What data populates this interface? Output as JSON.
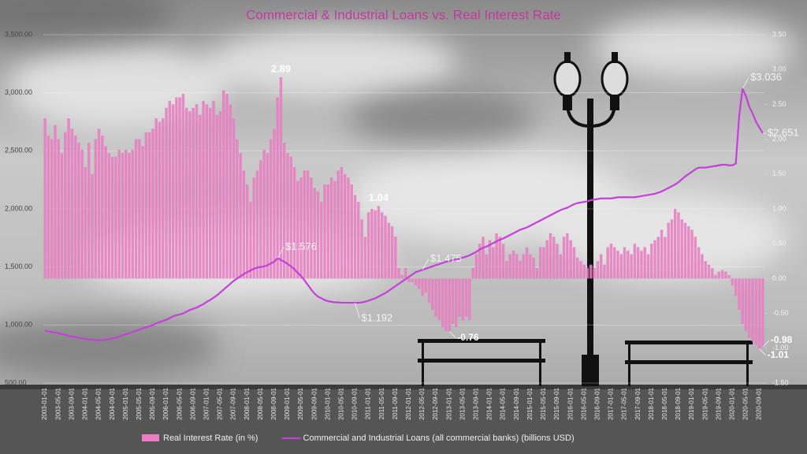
{
  "chart_data": {
    "type": "combo",
    "title": "Commercial & Industrial Loans vs. Real Interest Rate",
    "categories": [
      "2003-01-01",
      null,
      null,
      null,
      "2003-05-01",
      null,
      null,
      null,
      "2003-09-01",
      null,
      null,
      null,
      "2004-01-01",
      null,
      null,
      null,
      "2004-05-01",
      null,
      null,
      null,
      "2004-09-01",
      null,
      null,
      null,
      "2005-01-01",
      null,
      null,
      null,
      "2005-05-01",
      null,
      null,
      null,
      "2005-09-01",
      null,
      null,
      null,
      "2006-01-01",
      null,
      null,
      null,
      "2006-05-01",
      null,
      null,
      null,
      "2006-09-01",
      null,
      null,
      null,
      "2007-01-01",
      null,
      null,
      null,
      "2007-05-01",
      null,
      null,
      null,
      "2007-09-01",
      null,
      null,
      null,
      "2008-01-01",
      null,
      null,
      null,
      "2008-05-01",
      null,
      null,
      null,
      "2008-09-01",
      null,
      null,
      null,
      "2009-01-01",
      null,
      null,
      null,
      "2009-05-01",
      null,
      null,
      null,
      "2009-09-01",
      null,
      null,
      null,
      "2010-01-01",
      null,
      null,
      null,
      "2010-05-01",
      null,
      null,
      null,
      "2010-09-01",
      null,
      null,
      null,
      "2011-01-01",
      null,
      null,
      null,
      "2011-05-01",
      null,
      null,
      null,
      "2011-09-01",
      null,
      null,
      null,
      "2012-01-01",
      null,
      null,
      null,
      "2012-05-01",
      null,
      null,
      null,
      "2012-09-01",
      null,
      null,
      null,
      "2013-01-01",
      null,
      null,
      null,
      "2013-05-01",
      null,
      null,
      null,
      "2013-09-01",
      null,
      null,
      null,
      "2014-01-01",
      null,
      null,
      null,
      "2014-05-01",
      null,
      null,
      null,
      "2014-09-01",
      null,
      null,
      null,
      "2015-01-01",
      null,
      null,
      null,
      "2015-05-01",
      null,
      null,
      null,
      "2015-09-01",
      null,
      null,
      null,
      "2016-01-01",
      null,
      null,
      null,
      "2016-05-01",
      null,
      null,
      null,
      "2016-09-01",
      null,
      null,
      null,
      "2017-01-01",
      null,
      null,
      null,
      "2017-05-01",
      null,
      null,
      null,
      "2017-09-01",
      null,
      null,
      null,
      "2018-01-01",
      null,
      null,
      null,
      "2018-05-01",
      null,
      null,
      null,
      "2018-09-01",
      null,
      null,
      null,
      "2019-01-01",
      null,
      null,
      null,
      "2019-05-01",
      null,
      null,
      null,
      "2019-09-01",
      null,
      null,
      null,
      "2020-01-01",
      null,
      null,
      null,
      "2020-05-01",
      null,
      null,
      null,
      "2020-09-01",
      null
    ],
    "series": [
      {
        "name": "Real Interest Rate (in %)",
        "type": "bar",
        "axis": "y2",
        "color": "#e97ec2",
        "values": [
          2.3,
          2.05,
          2.0,
          2.2,
          2.0,
          1.8,
          2.1,
          2.3,
          2.15,
          2.05,
          1.95,
          1.85,
          1.6,
          1.95,
          1.5,
          2.0,
          2.15,
          2.05,
          1.9,
          1.8,
          1.75,
          1.75,
          1.85,
          1.8,
          1.85,
          1.8,
          1.85,
          2.0,
          2.0,
          1.9,
          2.1,
          2.1,
          2.15,
          2.3,
          2.25,
          2.3,
          2.45,
          2.55,
          2.5,
          2.6,
          2.6,
          2.65,
          2.45,
          2.4,
          2.45,
          2.5,
          2.35,
          2.55,
          2.5,
          2.45,
          2.55,
          2.35,
          2.4,
          2.7,
          2.65,
          2.5,
          2.3,
          2.0,
          1.8,
          1.55,
          1.35,
          1.1,
          1.45,
          1.55,
          1.7,
          1.85,
          1.8,
          2.0,
          2.15,
          2.6,
          2.89,
          1.95,
          1.8,
          1.75,
          1.6,
          1.4,
          1.45,
          1.55,
          1.55,
          1.45,
          1.3,
          1.25,
          1.1,
          1.35,
          1.35,
          1.45,
          1.4,
          1.55,
          1.6,
          1.5,
          1.45,
          1.35,
          1.2,
          1.1,
          0.85,
          0.6,
          0.95,
          1.0,
          0.98,
          1.04,
          0.95,
          0.9,
          0.8,
          0.75,
          0.6,
          0.15,
          0.05,
          0.15,
          -0.05,
          -0.05,
          -0.1,
          -0.15,
          -0.25,
          -0.2,
          -0.35,
          -0.45,
          -0.55,
          -0.6,
          -0.7,
          -0.75,
          -0.76,
          -0.65,
          -0.7,
          -0.55,
          -0.6,
          -0.55,
          -0.6,
          0.15,
          0.35,
          0.5,
          0.6,
          0.35,
          0.55,
          0.45,
          0.65,
          0.6,
          0.5,
          0.25,
          0.35,
          0.4,
          0.35,
          0.25,
          0.35,
          0.45,
          0.35,
          0.3,
          0.15,
          0.45,
          0.45,
          0.55,
          0.65,
          0.6,
          0.5,
          0.35,
          0.6,
          0.65,
          0.55,
          0.45,
          0.3,
          0.25,
          0.2,
          0.15,
          0.2,
          0.15,
          0.25,
          0.35,
          0.2,
          0.45,
          0.5,
          0.45,
          0.4,
          0.35,
          0.45,
          0.4,
          0.35,
          0.5,
          0.45,
          0.4,
          0.45,
          0.35,
          0.5,
          0.55,
          0.6,
          0.7,
          0.6,
          0.8,
          0.85,
          1.0,
          0.95,
          0.85,
          0.8,
          0.75,
          0.7,
          0.6,
          0.45,
          0.35,
          0.25,
          0.2,
          0.15,
          0.05,
          0.1,
          0.12,
          0.1,
          0.05,
          -0.1,
          -0.25,
          -0.45,
          -0.65,
          -0.75,
          -0.85,
          -0.9,
          -0.95,
          -1.01,
          -0.98
        ],
        "value_labels": [
          null,
          null,
          null,
          null,
          null,
          null,
          null,
          null,
          null,
          null,
          null,
          null,
          null,
          null,
          null,
          null,
          null,
          null,
          null,
          null,
          null,
          null,
          null,
          null,
          null,
          null,
          null,
          null,
          null,
          null,
          null,
          null,
          null,
          null,
          null,
          null,
          null,
          null,
          null,
          null,
          null,
          null,
          null,
          null,
          null,
          null,
          null,
          null,
          null,
          null,
          null,
          null,
          null,
          null,
          null,
          null,
          null,
          null,
          null,
          null,
          null,
          null,
          null,
          null,
          null,
          null,
          null,
          null,
          null,
          null,
          "2.89",
          null,
          null,
          null,
          null,
          null,
          null,
          null,
          null,
          null,
          null,
          null,
          null,
          null,
          null,
          null,
          null,
          null,
          null,
          null,
          null,
          null,
          null,
          null,
          null,
          null,
          null,
          null,
          null,
          "1.04",
          null,
          null,
          null,
          null,
          null,
          null,
          null,
          null,
          null,
          null,
          null,
          null,
          null,
          null,
          null,
          null,
          null,
          null,
          null,
          null,
          "-0.76",
          null,
          null,
          null,
          null,
          null,
          null,
          null,
          null,
          null,
          null,
          null,
          null,
          null,
          null,
          null,
          null,
          null,
          null,
          null,
          null,
          null,
          null,
          null,
          null,
          null,
          null,
          null,
          null,
          null,
          null,
          null,
          null,
          null,
          null,
          null,
          null,
          null,
          null,
          null,
          null,
          null,
          null,
          null,
          null,
          null,
          null,
          null,
          null,
          null,
          null,
          null,
          null,
          null,
          null,
          null,
          null,
          null,
          null,
          null,
          null,
          null,
          null,
          null,
          null,
          null,
          null,
          null,
          null,
          null,
          null,
          null,
          null,
          null,
          null,
          null,
          null,
          null,
          null,
          null,
          null,
          null,
          null,
          null,
          null,
          null,
          null,
          null,
          null,
          null,
          null,
          null,
          "-1.01",
          "-0.98"
        ]
      },
      {
        "name": "Commercial and Industrial Loans (all commercial banks) (billions USD)",
        "type": "line",
        "axis": "y",
        "color": "#c440d8",
        "values": [
          950,
          945,
          940,
          935,
          930,
          920,
          915,
          905,
          900,
          895,
          890,
          885,
          880,
          875,
          875,
          870,
          868,
          870,
          875,
          880,
          885,
          890,
          900,
          910,
          920,
          930,
          940,
          950,
          960,
          970,
          980,
          990,
          1000,
          1015,
          1025,
          1035,
          1045,
          1060,
          1075,
          1085,
          1090,
          1100,
          1115,
          1130,
          1140,
          1150,
          1165,
          1180,
          1200,
          1215,
          1235,
          1255,
          1280,
          1305,
          1330,
          1355,
          1380,
          1400,
          1420,
          1440,
          1455,
          1470,
          1485,
          1495,
          1500,
          1505,
          1515,
          1530,
          1545,
          1576,
          1560,
          1545,
          1525,
          1505,
          1480,
          1450,
          1420,
          1385,
          1345,
          1305,
          1270,
          1245,
          1230,
          1215,
          1205,
          1200,
          1195,
          1195,
          1192,
          1192,
          1192,
          1192,
          1192,
          1192,
          1195,
          1200,
          1210,
          1220,
          1230,
          1245,
          1260,
          1275,
          1295,
          1315,
          1335,
          1355,
          1375,
          1395,
          1415,
          1435,
          1455,
          1465,
          1475,
          1485,
          1495,
          1505,
          1515,
          1525,
          1535,
          1545,
          1550,
          1560,
          1565,
          1570,
          1580,
          1590,
          1600,
          1615,
          1630,
          1650,
          1665,
          1675,
          1690,
          1705,
          1720,
          1735,
          1745,
          1760,
          1775,
          1790,
          1805,
          1820,
          1830,
          1840,
          1855,
          1870,
          1885,
          1900,
          1915,
          1930,
          1945,
          1960,
          1975,
          1990,
          2000,
          2010,
          2025,
          2040,
          2050,
          2055,
          2060,
          2065,
          2075,
          2080,
          2085,
          2090,
          2090,
          2090,
          2090,
          2095,
          2100,
          2100,
          2100,
          2100,
          2100,
          2100,
          2105,
          2110,
          2115,
          2120,
          2125,
          2130,
          2140,
          2150,
          2165,
          2180,
          2195,
          2210,
          2230,
          2255,
          2280,
          2300,
          2320,
          2340,
          2355,
          2355,
          2355,
          2360,
          2365,
          2370,
          2375,
          2380,
          2380,
          2375,
          2375,
          2390,
          2800,
          3036,
          2970,
          2880,
          2820,
          2750,
          2700,
          2651
        ],
        "value_labels": [
          null,
          null,
          null,
          null,
          null,
          null,
          null,
          null,
          null,
          null,
          null,
          null,
          null,
          null,
          null,
          null,
          null,
          null,
          null,
          null,
          null,
          null,
          null,
          null,
          null,
          null,
          null,
          null,
          null,
          null,
          null,
          null,
          null,
          null,
          null,
          null,
          null,
          null,
          null,
          null,
          null,
          null,
          null,
          null,
          null,
          null,
          null,
          null,
          null,
          null,
          null,
          null,
          null,
          null,
          null,
          null,
          null,
          null,
          null,
          null,
          null,
          null,
          null,
          null,
          null,
          null,
          null,
          null,
          null,
          "$1.576",
          null,
          null,
          null,
          null,
          null,
          null,
          null,
          null,
          null,
          null,
          null,
          null,
          null,
          null,
          null,
          null,
          null,
          null,
          null,
          null,
          null,
          null,
          "$1.192",
          null,
          null,
          null,
          null,
          null,
          null,
          null,
          null,
          null,
          null,
          null,
          null,
          null,
          null,
          null,
          null,
          null,
          null,
          null,
          "$1.475",
          null,
          null,
          null,
          null,
          null,
          null,
          null,
          null,
          null,
          null,
          null,
          null,
          null,
          null,
          null,
          null,
          null,
          null,
          null,
          null,
          null,
          null,
          null,
          null,
          null,
          null,
          null,
          null,
          null,
          null,
          null,
          null,
          null,
          null,
          null,
          null,
          null,
          null,
          null,
          null,
          null,
          null,
          null,
          null,
          null,
          null,
          null,
          null,
          null,
          null,
          null,
          null,
          null,
          null,
          null,
          null,
          null,
          null,
          null,
          null,
          null,
          null,
          null,
          null,
          null,
          null,
          null,
          null,
          null,
          null,
          null,
          null,
          null,
          null,
          null,
          null,
          null,
          null,
          null,
          null,
          null,
          null,
          null,
          null,
          null,
          null,
          null,
          null,
          null,
          null,
          null,
          null,
          null,
          null,
          "$3.036",
          null,
          null,
          null,
          null,
          null,
          "$2.651"
        ]
      }
    ],
    "ylim": [
      500,
      3500
    ],
    "yticks": [
      {
        "value": 500,
        "label": "500.00"
      },
      {
        "value": 1000,
        "label": "1,000.00"
      },
      {
        "value": 1500,
        "label": "1,500.00"
      },
      {
        "value": 2000,
        "label": "2,000.00"
      },
      {
        "value": 2500,
        "label": "2,500.00"
      },
      {
        "value": 3000,
        "label": "3,000.00"
      },
      {
        "value": 3500,
        "label": "3,500.00"
      }
    ],
    "y2lim": [
      -1.5,
      3.5
    ],
    "y2ticks": [
      {
        "value": -1.5,
        "label": "-1.50"
      },
      {
        "value": -1,
        "label": "-1.00"
      },
      {
        "value": -0.5,
        "label": "-0.50"
      },
      {
        "value": 0,
        "label": "0.00"
      },
      {
        "value": 0.5,
        "label": "0.50"
      },
      {
        "value": 1,
        "label": "1.00"
      },
      {
        "value": 1.5,
        "label": "1.50"
      },
      {
        "value": 2,
        "label": "2.00"
      },
      {
        "value": 2.5,
        "label": "2.50"
      },
      {
        "value": 3,
        "label": "3.00"
      },
      {
        "value": 3.5,
        "label": "3.50"
      }
    ],
    "grid": true,
    "legend": "bottom"
  }
}
